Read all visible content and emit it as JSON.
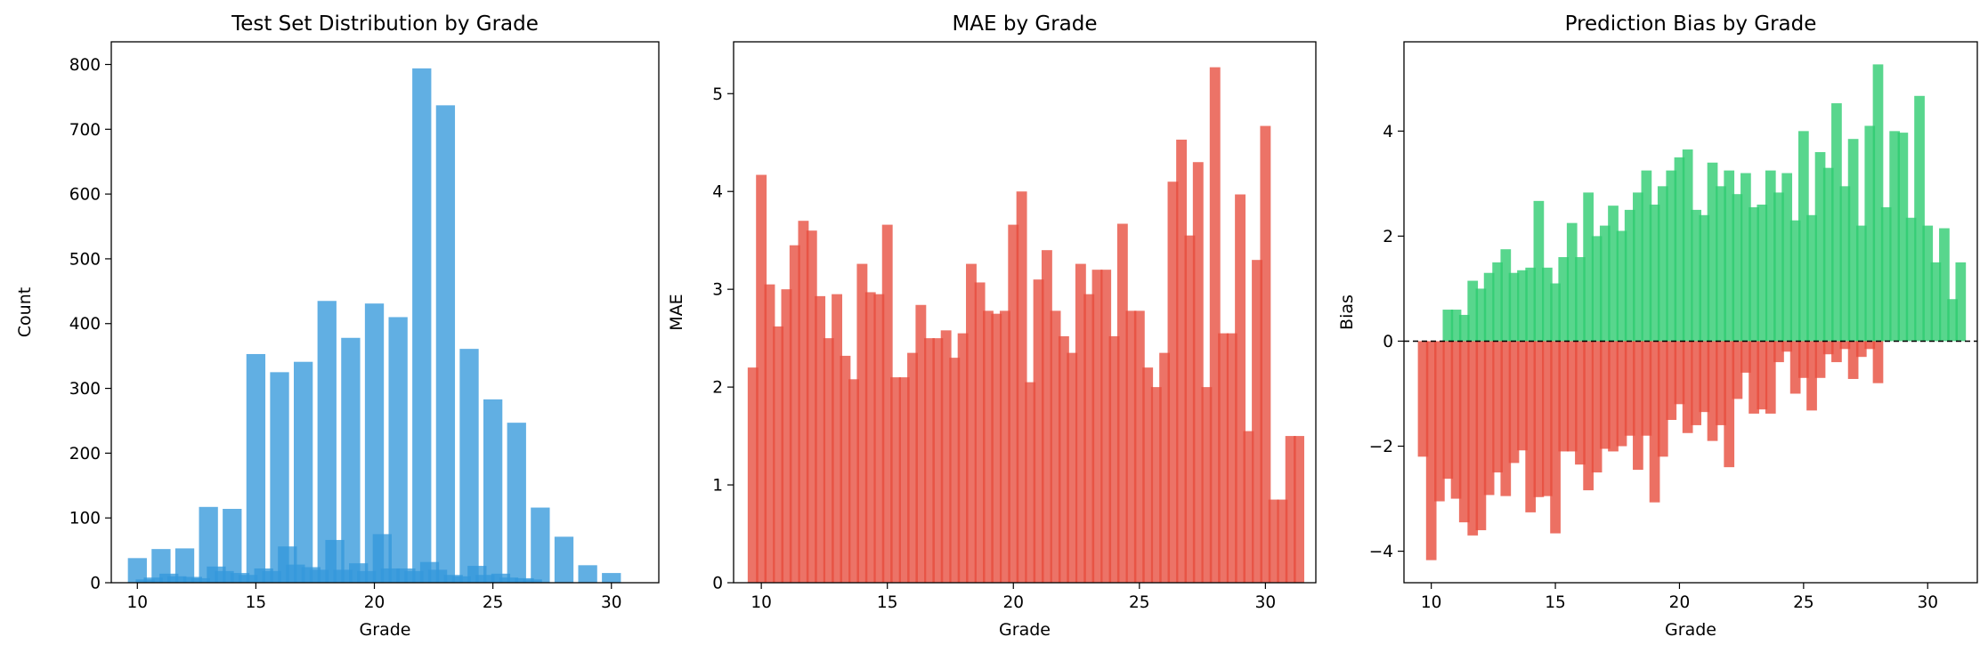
{
  "colors": {
    "count_bar": "#3498db",
    "error_bar": "#e74c3c",
    "positive_bar": "#2ecc71",
    "zero_line": "#000000"
  },
  "chart_data": [
    {
      "type": "bar",
      "title": "Test Set Distribution by Grade",
      "xlabel": "Grade",
      "ylabel": "Count",
      "xlim": [
        8.9,
        32.0
      ],
      "ylim": [
        0,
        835
      ],
      "xticks": [
        10,
        15,
        20,
        25,
        30
      ],
      "yticks": [
        0,
        100,
        200,
        300,
        400,
        500,
        600,
        700,
        800
      ],
      "series": [
        {
          "x": [
            10,
            11,
            12,
            13,
            14,
            15,
            16,
            17,
            18,
            19,
            20,
            21,
            22,
            23,
            24,
            25,
            26,
            27,
            28,
            29,
            30
          ],
          "values": [
            38,
            52,
            53,
            117,
            114,
            353,
            325,
            341,
            435,
            378,
            431,
            410,
            794,
            737,
            361,
            283,
            247,
            116,
            71,
            27,
            15
          ]
        },
        {
          "x": [
            10.33,
            10.67,
            11.33,
            11.67,
            12.33,
            12.67,
            13.33,
            13.67,
            14.33,
            14.67,
            15.33,
            15.67,
            16.33,
            16.67,
            17.33,
            17.67,
            18.33,
            18.67,
            19.33,
            19.67,
            20.33,
            20.67,
            21.33,
            21.67,
            22.33,
            22.67,
            23.33,
            23.67,
            24.33,
            24.67,
            25.33,
            25.67,
            26.33,
            26.67
          ],
          "values": [
            5,
            8,
            14,
            10,
            9,
            7,
            25,
            18,
            15,
            12,
            22,
            18,
            56,
            28,
            24,
            20,
            66,
            20,
            30,
            18,
            75,
            22,
            22,
            18,
            32,
            20,
            12,
            10,
            26,
            12,
            14,
            8,
            7,
            5
          ]
        }
      ]
    },
    {
      "type": "bar",
      "title": "MAE by Grade",
      "xlabel": "Grade",
      "ylabel": "MAE",
      "xlim": [
        8.9,
        32.0
      ],
      "ylim": [
        0,
        5.53
      ],
      "xticks": [
        10,
        15,
        20,
        25,
        30
      ],
      "yticks": [
        0,
        1,
        2,
        3,
        4,
        5
      ],
      "x": [
        9.67,
        10.0,
        10.33,
        10.67,
        11.0,
        11.33,
        11.67,
        12.0,
        12.33,
        12.67,
        13.0,
        13.33,
        13.67,
        14.0,
        14.33,
        14.67,
        15.0,
        15.33,
        15.67,
        16.0,
        16.33,
        16.67,
        17.0,
        17.33,
        17.67,
        18.0,
        18.33,
        18.67,
        19.0,
        19.33,
        19.67,
        20.0,
        20.33,
        20.67,
        21.0,
        21.33,
        21.67,
        22.0,
        22.33,
        22.67,
        23.0,
        23.33,
        23.67,
        24.0,
        24.33,
        24.67,
        25.0,
        25.33,
        25.67,
        26.0,
        26.33,
        26.67,
        27.0,
        27.33,
        27.67,
        28.0,
        28.33,
        28.67,
        29.0,
        29.33,
        29.67,
        30.0,
        30.33,
        30.67,
        31.0,
        31.33
      ],
      "values": [
        2.2,
        4.17,
        3.05,
        2.62,
        3.0,
        3.45,
        3.7,
        3.6,
        2.93,
        2.5,
        2.95,
        2.32,
        2.08,
        3.26,
        2.97,
        2.95,
        3.66,
        2.1,
        2.1,
        2.35,
        2.84,
        2.5,
        2.5,
        2.58,
        2.3,
        2.55,
        3.26,
        3.07,
        2.78,
        2.75,
        2.78,
        3.66,
        4.0,
        2.05,
        3.1,
        3.4,
        2.78,
        2.52,
        2.35,
        3.26,
        2.95,
        3.2,
        3.2,
        2.52,
        3.67,
        2.78,
        2.78,
        2.2,
        2.0,
        2.35,
        4.1,
        4.53,
        3.55,
        4.3,
        2.0,
        5.27,
        2.55,
        2.55,
        3.97,
        1.55,
        3.3,
        4.67,
        0.85,
        0.85,
        1.5,
        1.5
      ]
    },
    {
      "type": "bar",
      "title": "Prediction Bias by Grade",
      "xlabel": "Grade",
      "ylabel": "Bias",
      "xlim": [
        8.9,
        32.0
      ],
      "ylim": [
        -4.6,
        5.7
      ],
      "xticks": [
        10,
        15,
        20,
        25,
        30
      ],
      "yticks": [
        -4,
        -2,
        0,
        2,
        4
      ],
      "reference_line": 0,
      "series": [
        {
          "x": [
            10.67,
            11.0,
            11.33,
            11.67,
            12.0,
            12.33,
            12.67,
            13.0,
            13.33,
            13.67,
            14.0,
            14.33,
            14.67,
            15.0,
            15.33,
            15.67,
            16.0,
            16.33,
            16.67,
            17.0,
            17.33,
            17.67,
            18.0,
            18.33,
            18.67,
            19.0,
            19.33,
            19.67,
            20.0,
            20.33,
            20.67,
            21.0,
            21.33,
            21.67,
            22.0,
            22.33,
            22.67,
            23.0,
            23.33,
            23.67,
            24.0,
            24.33,
            24.67,
            25.0,
            25.33,
            25.67,
            26.0,
            26.33,
            26.67,
            27.0,
            27.33,
            27.67,
            28.0,
            28.33,
            28.67,
            29.0,
            29.33,
            29.67,
            30.0,
            30.33,
            30.67,
            31.0,
            31.33
          ],
          "values": [
            0.6,
            0.6,
            0.5,
            1.15,
            1.0,
            1.3,
            1.5,
            1.75,
            1.3,
            1.35,
            1.4,
            2.67,
            1.4,
            1.1,
            1.6,
            2.25,
            1.6,
            2.83,
            2.0,
            2.2,
            2.58,
            2.1,
            2.5,
            2.83,
            3.25,
            2.6,
            2.95,
            3.25,
            3.5,
            3.65,
            2.5,
            2.4,
            3.4,
            2.95,
            3.25,
            2.8,
            3.2,
            2.55,
            2.6,
            3.25,
            2.83,
            3.2,
            2.3,
            4.0,
            2.4,
            3.6,
            3.3,
            4.53,
            2.95,
            3.85,
            2.2,
            4.1,
            5.27,
            2.55,
            4.0,
            3.97,
            2.35,
            4.67,
            2.2,
            1.5,
            2.15,
            0.8,
            1.5
          ]
        },
        {
          "x": [
            9.67,
            10.0,
            10.33,
            10.67,
            11.0,
            11.33,
            11.67,
            12.0,
            12.33,
            12.67,
            13.0,
            13.33,
            13.67,
            14.0,
            14.33,
            14.67,
            15.0,
            15.33,
            15.67,
            16.0,
            16.33,
            16.67,
            17.0,
            17.33,
            17.67,
            18.0,
            18.33,
            18.67,
            19.0,
            19.33,
            19.67,
            20.0,
            20.33,
            20.67,
            21.0,
            21.33,
            21.67,
            22.0,
            22.33,
            22.67,
            23.0,
            23.33,
            23.67,
            24.0,
            24.33,
            24.67,
            25.0,
            25.33,
            25.67,
            26.0,
            26.33,
            26.67,
            27.0,
            27.33,
            27.67,
            28.0
          ],
          "values": [
            -2.2,
            -4.17,
            -3.05,
            -2.62,
            -3.0,
            -3.45,
            -3.7,
            -3.6,
            -2.93,
            -2.5,
            -2.95,
            -2.32,
            -2.08,
            -3.26,
            -2.97,
            -2.95,
            -3.66,
            -2.1,
            -2.1,
            -2.35,
            -2.84,
            -2.5,
            -2.05,
            -2.1,
            -2.0,
            -1.8,
            -2.45,
            -1.8,
            -3.07,
            -2.2,
            -1.5,
            -1.2,
            -1.75,
            -1.6,
            -1.35,
            -1.9,
            -1.6,
            -2.4,
            -1.1,
            -0.6,
            -1.38,
            -1.3,
            -1.38,
            -0.4,
            -0.2,
            -1.0,
            -0.7,
            -1.32,
            -0.7,
            -0.25,
            -0.4,
            -0.15,
            -0.72,
            -0.3,
            -0.15,
            -0.8
          ]
        }
      ]
    }
  ]
}
